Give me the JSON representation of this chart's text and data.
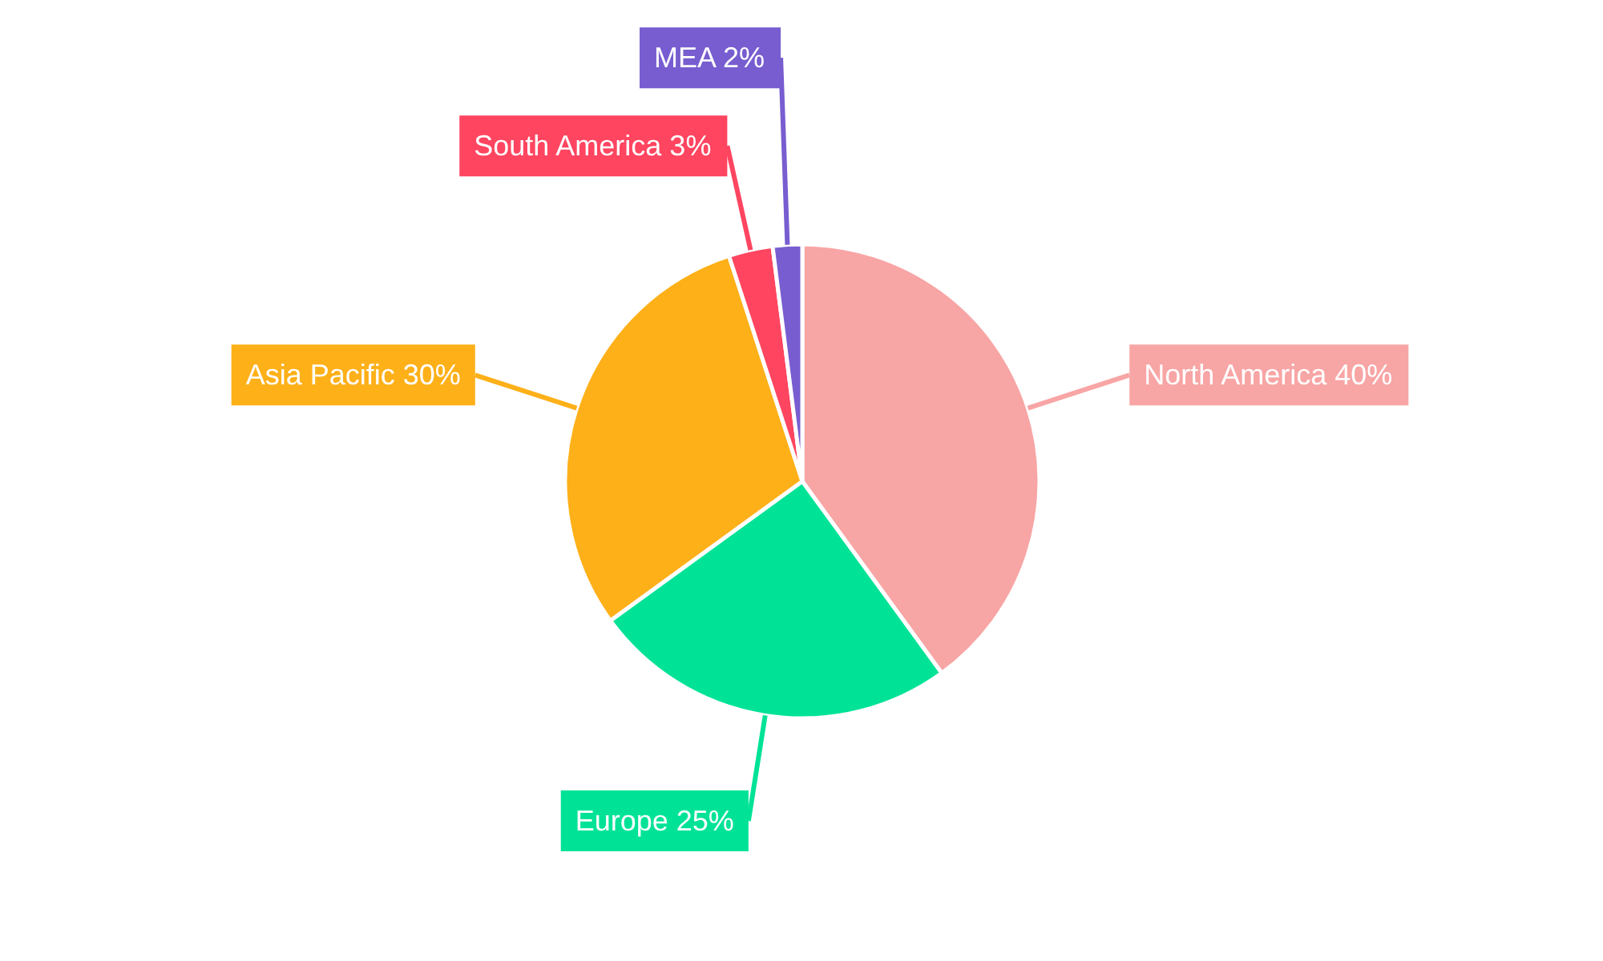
{
  "chart_data": {
    "type": "pie",
    "categories": [
      "North America",
      "Europe",
      "Asia Pacific",
      "South America",
      "MEA"
    ],
    "values": [
      40,
      25,
      30,
      3,
      2
    ],
    "value_labels": [
      "40%",
      "25%",
      "30%",
      "3%",
      "2%"
    ],
    "colors": [
      "#f8a5a5",
      "#00e396",
      "#feb019",
      "#ff4560",
      "#775dd0"
    ]
  }
}
